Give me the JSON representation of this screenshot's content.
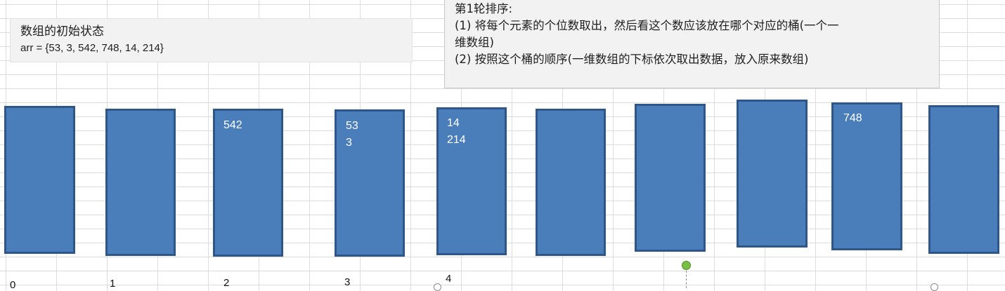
{
  "initial_state": {
    "title": "数组的初始状态",
    "array_text": "arr = {53, 3, 542, 748, 14, 214}"
  },
  "round_notes": {
    "heading": "第1轮排序:",
    "step1_line1": "(1) 将每个元素的个位数取出，然后看这个数应该放在哪个对应的桶(一个一",
    "step1_line2": "维数组)",
    "step2": "(2) 按照这个桶的顺序(一维数组的下标依次取出数据，放入原来数组)"
  },
  "buckets": [
    {
      "items": []
    },
    {
      "items": []
    },
    {
      "items": [
        "542"
      ]
    },
    {
      "items": [
        "53",
        "3"
      ]
    },
    {
      "items": [
        "14",
        "214"
      ]
    },
    {
      "items": []
    },
    {
      "items": []
    },
    {
      "items": []
    },
    {
      "items": [
        "748"
      ]
    },
    {
      "items": []
    }
  ],
  "index_labels": [
    "0",
    "1",
    "2",
    "3",
    "4"
  ],
  "colors": {
    "bucket_fill": "#4a7ebb",
    "bucket_border": "#2f5687",
    "note_background": "#f2f2f2"
  }
}
